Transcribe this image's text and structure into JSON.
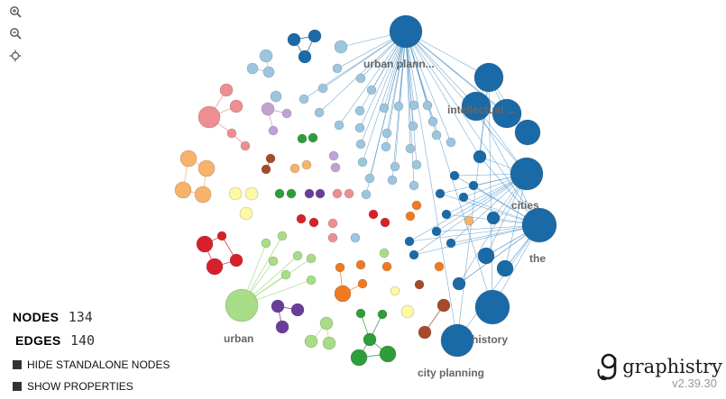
{
  "toolbar": {
    "zoom_in_icon": "zoom-in-icon",
    "zoom_out_icon": "zoom-out-icon",
    "center_icon": "crosshair-icon"
  },
  "stats": {
    "nodes_label": "NODES",
    "nodes_value": "134",
    "edges_label": "EDGES",
    "edges_value": "140"
  },
  "toggles": {
    "hide_standalone": "HIDE STANDALONE NODES",
    "show_properties": "SHOW PROPERTIES"
  },
  "brand": {
    "name": "graphistry",
    "version": "v2.39.30"
  },
  "graph": {
    "labels": {
      "urban_planning": "urban plann...",
      "intellectual": "intellectual ...",
      "cities": "cities",
      "the": "the",
      "history": "history",
      "city_planning": "city planning",
      "urban": "urban"
    },
    "colors": {
      "dark_blue": "#1a6aa8",
      "light_blue": "#9cc6df",
      "edge_blue": "#4a8fc4",
      "pink": "#ee8e92",
      "orange_light": "#f7b26b",
      "red": "#d8202a",
      "green_light": "#a8dc86",
      "purple_light": "#c0a3d2",
      "purple_dark": "#6a3d9a",
      "green": "#2e9d3a",
      "orange": "#f07a22",
      "brown": "#a64b2a",
      "yellow": "#fdf8a2"
    }
  }
}
